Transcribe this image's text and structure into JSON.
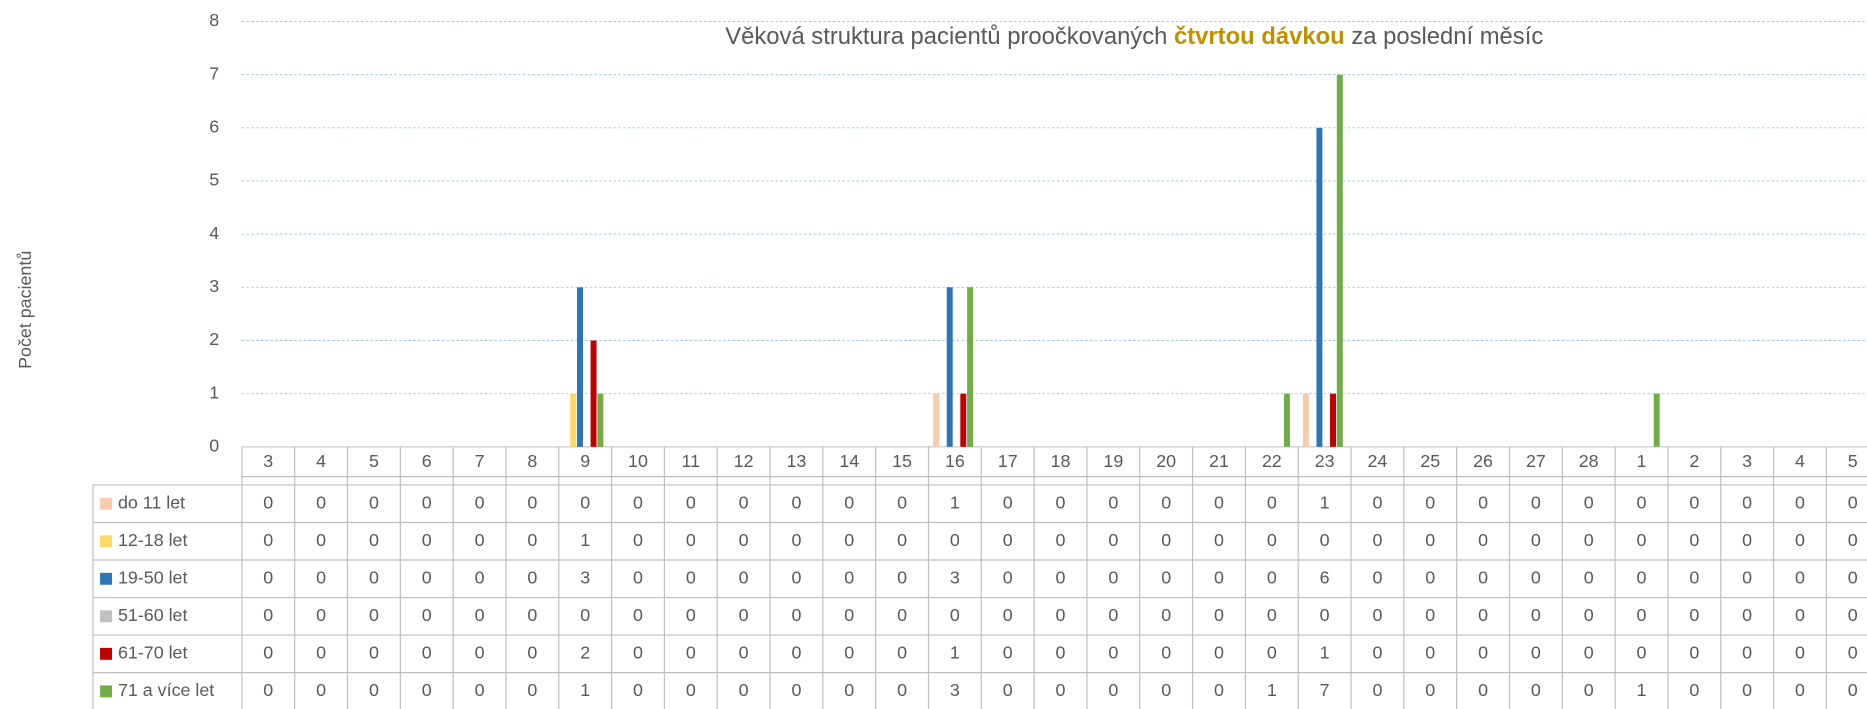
{
  "chart_data": {
    "type": "bar",
    "title": "Věková struktura pacientů proočkovaných",
    "title_highlight": "čtvrtou dávkou",
    "title_end": "za poslední měsíc",
    "y_label": "Počet pacientů",
    "categories": [
      "3",
      "4",
      "5",
      "6",
      "7",
      "8",
      "9",
      "10",
      "11",
      "12",
      "13",
      "14",
      "15",
      "16",
      "17",
      "18",
      "19",
      "20",
      "21",
      "22",
      "23",
      "24",
      "25",
      "26",
      "27",
      "28",
      "1",
      "2",
      "3",
      "4",
      "5"
    ],
    "series": [
      {
        "name": "do 11 let",
        "color": "#f8cbad",
        "values": [
          0,
          0,
          0,
          0,
          0,
          0,
          0,
          0,
          0,
          0,
          0,
          0,
          0,
          1,
          0,
          0,
          0,
          0,
          0,
          0,
          1,
          0,
          0,
          0,
          0,
          0,
          0,
          0,
          0,
          0,
          0
        ]
      },
      {
        "name": "12-18 let",
        "color": "#ffd966",
        "values": [
          0,
          0,
          0,
          0,
          0,
          0,
          1,
          0,
          0,
          0,
          0,
          0,
          0,
          0,
          0,
          0,
          0,
          0,
          0,
          0,
          0,
          0,
          0,
          0,
          0,
          0,
          0,
          0,
          0,
          0,
          0
        ]
      },
      {
        "name": "19-50 let",
        "color": "#2e75b6",
        "values": [
          0,
          0,
          0,
          0,
          0,
          0,
          3,
          0,
          0,
          0,
          0,
          0,
          0,
          3,
          0,
          0,
          0,
          0,
          0,
          0,
          6,
          0,
          0,
          0,
          0,
          0,
          0,
          0,
          0,
          0,
          0
        ]
      },
      {
        "name": "51-60 let",
        "color": "#c0c0c0",
        "values": [
          0,
          0,
          0,
          0,
          0,
          0,
          0,
          0,
          0,
          0,
          0,
          0,
          0,
          0,
          0,
          0,
          0,
          0,
          0,
          0,
          0,
          0,
          0,
          0,
          0,
          0,
          0,
          0,
          0,
          0,
          0
        ]
      },
      {
        "name": "61-70 let",
        "color": "#c00000",
        "values": [
          0,
          0,
          0,
          0,
          0,
          0,
          2,
          0,
          0,
          0,
          0,
          0,
          0,
          1,
          0,
          0,
          0,
          0,
          0,
          0,
          1,
          0,
          0,
          0,
          0,
          0,
          0,
          0,
          0,
          0,
          0
        ]
      },
      {
        "name": "71 a více let",
        "color": "#70ad47",
        "values": [
          0,
          0,
          0,
          0,
          0,
          0,
          1,
          0,
          0,
          0,
          0,
          0,
          0,
          3,
          0,
          0,
          0,
          0,
          0,
          1,
          7,
          0,
          0,
          0,
          0,
          0,
          1,
          0,
          0,
          0,
          0
        ]
      }
    ],
    "ylim": [
      0,
      8
    ],
    "yticks": [
      0,
      1,
      2,
      3,
      4,
      5,
      6,
      7,
      8
    ],
    "grid": true
  }
}
